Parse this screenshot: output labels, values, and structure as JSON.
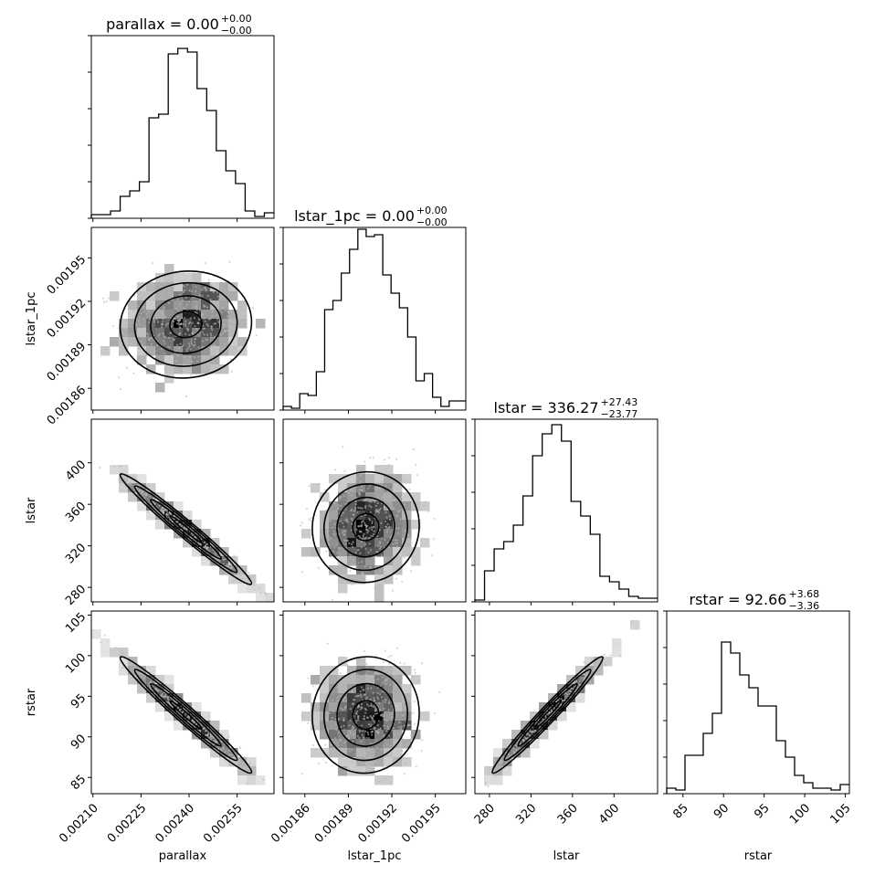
{
  "chart_data": {
    "type": "corner",
    "parameters": [
      "parallax",
      "lstar_1pc",
      "lstar",
      "rstar"
    ],
    "titles": [
      {
        "label": "parallax = 0.00",
        "sup": "+0.00",
        "sub": "−0.00"
      },
      {
        "label": "lstar_1pc = 0.00",
        "sup": "+0.00",
        "sub": "−0.00"
      },
      {
        "label": "lstar = 336.27",
        "sup": "+27.43",
        "sub": "−23.77"
      },
      {
        "label": "rstar = 92.66",
        "sup": "+3.68",
        "sub": "−3.36"
      }
    ],
    "xlabels": [
      "parallax",
      "lstar_1pc",
      "lstar",
      "rstar"
    ],
    "ylabels": [
      "",
      "lstar_1pc",
      "lstar",
      "rstar"
    ],
    "ranges": [
      [
        0.002095,
        0.002665
      ],
      [
        0.001845,
        0.001971
      ],
      [
        266,
        442
      ],
      [
        83,
        105.5
      ]
    ],
    "ticks": {
      "parallax": {
        "values": [
          0.0021,
          0.00225,
          0.0024,
          0.00255
        ],
        "labels": [
          "0.00210",
          "0.00225",
          "0.00240",
          "0.00255"
        ]
      },
      "lstar_1pc": {
        "values": [
          0.00186,
          0.00189,
          0.00192,
          0.00195
        ],
        "labels": [
          "0.00186",
          "0.00189",
          "0.00192",
          "0.00195"
        ]
      },
      "lstar": {
        "values": [
          280,
          320,
          360,
          400
        ],
        "labels": [
          "280",
          "320",
          "360",
          "400"
        ]
      },
      "rstar": {
        "values": [
          85,
          90,
          95,
          100,
          105
        ],
        "labels": [
          "85",
          "90",
          "95",
          "100",
          "105"
        ]
      }
    },
    "histograms": [
      [
        0.02,
        0.02,
        0.04,
        0.12,
        0.15,
        0.2,
        0.55,
        0.57,
        0.9,
        0.93,
        0.91,
        0.71,
        0.59,
        0.37,
        0.26,
        0.19,
        0.04,
        0.01,
        0.03
      ],
      [
        0.02,
        0.01,
        0.09,
        0.08,
        0.21,
        0.55,
        0.6,
        0.75,
        0.88,
        0.99,
        0.95,
        0.96,
        0.74,
        0.64,
        0.56,
        0.4,
        0.16,
        0.2,
        0.07,
        0.02,
        0.05,
        0.05
      ],
      [
        0.01,
        0.17,
        0.29,
        0.33,
        0.42,
        0.58,
        0.8,
        0.92,
        0.97,
        0.88,
        0.55,
        0.47,
        0.37,
        0.14,
        0.11,
        0.07,
        0.03,
        0.02,
        0.02
      ],
      [
        0.03,
        0.02,
        0.21,
        0.21,
        0.33,
        0.44,
        0.83,
        0.77,
        0.65,
        0.58,
        0.48,
        0.48,
        0.29,
        0.2,
        0.1,
        0.06,
        0.03,
        0.03,
        0.02,
        0.05
      ]
    ],
    "scatter_2d": [
      {
        "row": 1,
        "col": 0,
        "center": [
          0.00239,
          0.001904
        ],
        "sigma": [
          0.0001,
          1.8e-05
        ],
        "rho": 0.05
      },
      {
        "row": 2,
        "col": 0,
        "center": [
          0.00239,
          336
        ],
        "sigma": [
          0.0001,
          26
        ],
        "rho": -0.98
      },
      {
        "row": 2,
        "col": 1,
        "center": [
          0.001902,
          338
        ],
        "sigma": [
          1.8e-05,
          26
        ],
        "rho": 0.03
      },
      {
        "row": 3,
        "col": 0,
        "center": [
          0.00239,
          92.7
        ],
        "sigma": [
          0.0001,
          3.5
        ],
        "rho": -0.98
      },
      {
        "row": 3,
        "col": 1,
        "center": [
          0.001902,
          92.7
        ],
        "sigma": [
          1.8e-05,
          3.5
        ],
        "rho": 0.03
      },
      {
        "row": 3,
        "col": 2,
        "center": [
          336,
          92.7
        ],
        "sigma": [
          26,
          3.5
        ],
        "rho": 0.98
      }
    ]
  }
}
